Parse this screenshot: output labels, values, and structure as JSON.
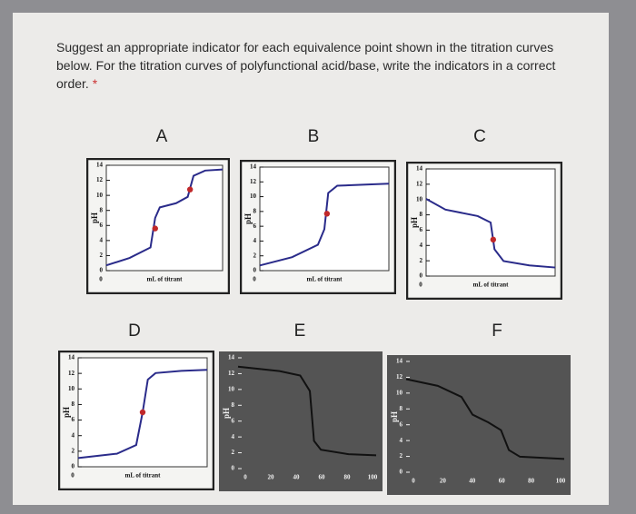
{
  "question": "Suggest an appropriate indicator for each equivalence point shown in the titration curves below. For the titration curves of polyfunctional acid/base, write the indicators in a correct order.",
  "required_mark": "*",
  "panels": [
    {
      "label": "A",
      "y_axis_label": "pH",
      "x_axis_label": "mL of titrant",
      "yticks": [
        "14",
        "12",
        "10",
        "8",
        "6",
        "4",
        "2",
        "0"
      ],
      "xticks": [
        "0"
      ]
    },
    {
      "label": "B",
      "y_axis_label": "pH",
      "x_axis_label": "mL of titrant",
      "yticks": [
        "14",
        "12",
        "10",
        "8",
        "6",
        "4",
        "2",
        "0"
      ],
      "xticks": [
        "0"
      ]
    },
    {
      "label": "C",
      "y_axis_label": "pH",
      "x_axis_label": "mL of titrant",
      "yticks": [
        "14",
        "12",
        "10",
        "8",
        "6",
        "4",
        "2",
        "0"
      ],
      "xticks": [
        "0"
      ]
    },
    {
      "label": "D",
      "y_axis_label": "pH",
      "x_axis_label": "mL of titrant",
      "yticks": [
        "14",
        "12",
        "10",
        "8",
        "6",
        "4",
        "2",
        "0"
      ],
      "xticks": [
        "0"
      ]
    },
    {
      "label": "E",
      "y_axis_label": "pH",
      "yticks": [
        "14",
        "12",
        "10",
        "8",
        "6",
        "4",
        "2",
        "0"
      ],
      "xticks": [
        "0",
        "20",
        "40",
        "60",
        "80",
        "100"
      ]
    },
    {
      "label": "F",
      "y_axis_label": "pH",
      "yticks": [
        "14",
        "12",
        "10",
        "8",
        "6",
        "4",
        "2",
        "0"
      ],
      "xticks": [
        "0",
        "20",
        "40",
        "60",
        "80",
        "100"
      ]
    }
  ]
}
